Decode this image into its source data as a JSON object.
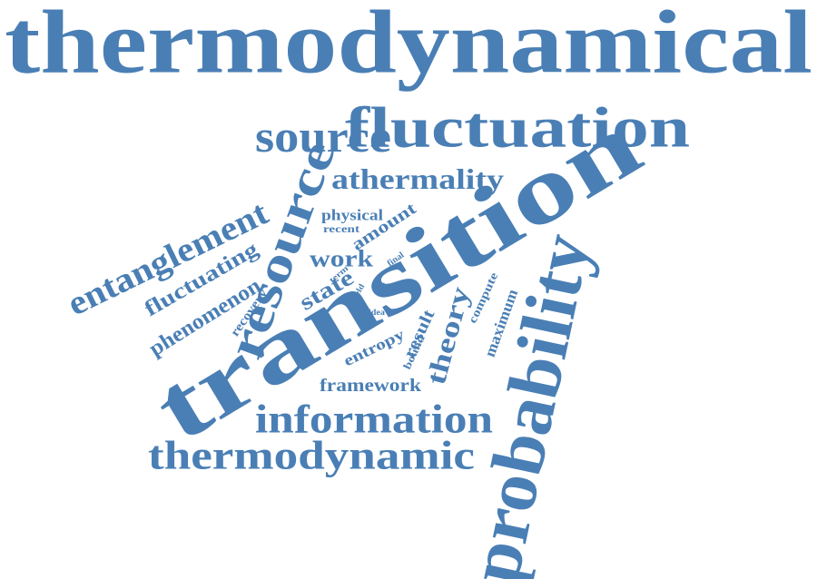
{
  "word_color": "#4a7fb5",
  "words": [
    {
      "id": "thermodynamical",
      "text": "thermodynamical"
    },
    {
      "id": "fluctuation",
      "text": "fluctuation"
    },
    {
      "id": "source",
      "text": "source"
    },
    {
      "id": "athermality",
      "text": "athermality"
    },
    {
      "id": "transition",
      "text": "transition"
    },
    {
      "id": "probability",
      "text": "probability"
    },
    {
      "id": "entanglement",
      "text": "entanglement"
    },
    {
      "id": "resource",
      "text": "resource"
    },
    {
      "id": "fluctuating",
      "text": "fluctuating"
    },
    {
      "id": "phenomenon",
      "text": "phenomenon"
    },
    {
      "id": "physical",
      "text": "physical"
    },
    {
      "id": "recent",
      "text": "recent"
    },
    {
      "id": "amount",
      "text": "amount"
    },
    {
      "id": "work",
      "text": "work"
    },
    {
      "id": "term",
      "text": "term"
    },
    {
      "id": "final",
      "text": "final"
    },
    {
      "id": "state",
      "text": "state"
    },
    {
      "id": "field",
      "text": "field"
    },
    {
      "id": "tool",
      "text": "tool"
    },
    {
      "id": "recovery",
      "text": "recovery"
    },
    {
      "id": "idea",
      "text": "idea"
    },
    {
      "id": "theory",
      "text": "theory"
    },
    {
      "id": "compute",
      "text": "compute"
    },
    {
      "id": "maximum",
      "text": "maximum"
    },
    {
      "id": "result",
      "text": "result"
    },
    {
      "id": "bound",
      "text": "bound"
    },
    {
      "id": "entropy",
      "text": "entropy"
    },
    {
      "id": "framework",
      "text": "framework"
    },
    {
      "id": "information",
      "text": "information"
    },
    {
      "id": "thermodynamic",
      "text": "thermodynamic"
    }
  ]
}
